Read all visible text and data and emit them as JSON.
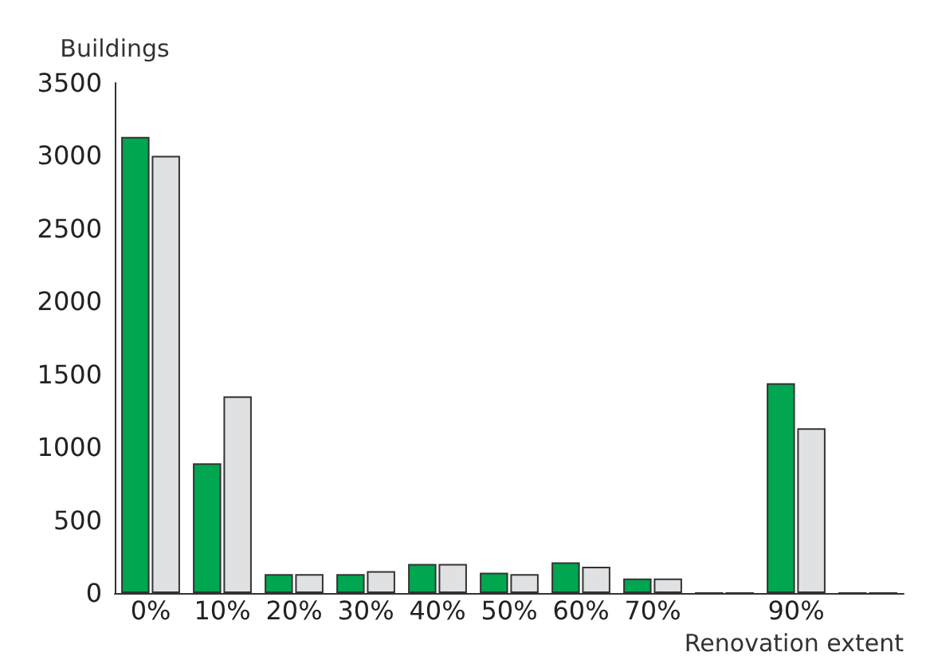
{
  "chart_data": {
    "type": "bar",
    "xlabel": "Renovation extent",
    "ylabel": "Buildings",
    "categories": [
      "0%",
      "10%",
      "20%",
      "30%",
      "40%",
      "50%",
      "60%",
      "70%",
      null,
      "90%",
      null
    ],
    "series": [
      {
        "color": "#00a650",
        "values": [
          3130,
          890,
          130,
          130,
          200,
          140,
          210,
          100,
          0,
          1440,
          0
        ]
      },
      {
        "color": "#e0e1e3",
        "values": [
          3000,
          1350,
          130,
          150,
          200,
          130,
          180,
          100,
          0,
          1130,
          0
        ]
      }
    ],
    "ylim": [
      0,
      3500
    ],
    "yticks": [
      0,
      500,
      1000,
      1500,
      2000,
      2500,
      3000,
      3500
    ],
    "grid": false
  }
}
